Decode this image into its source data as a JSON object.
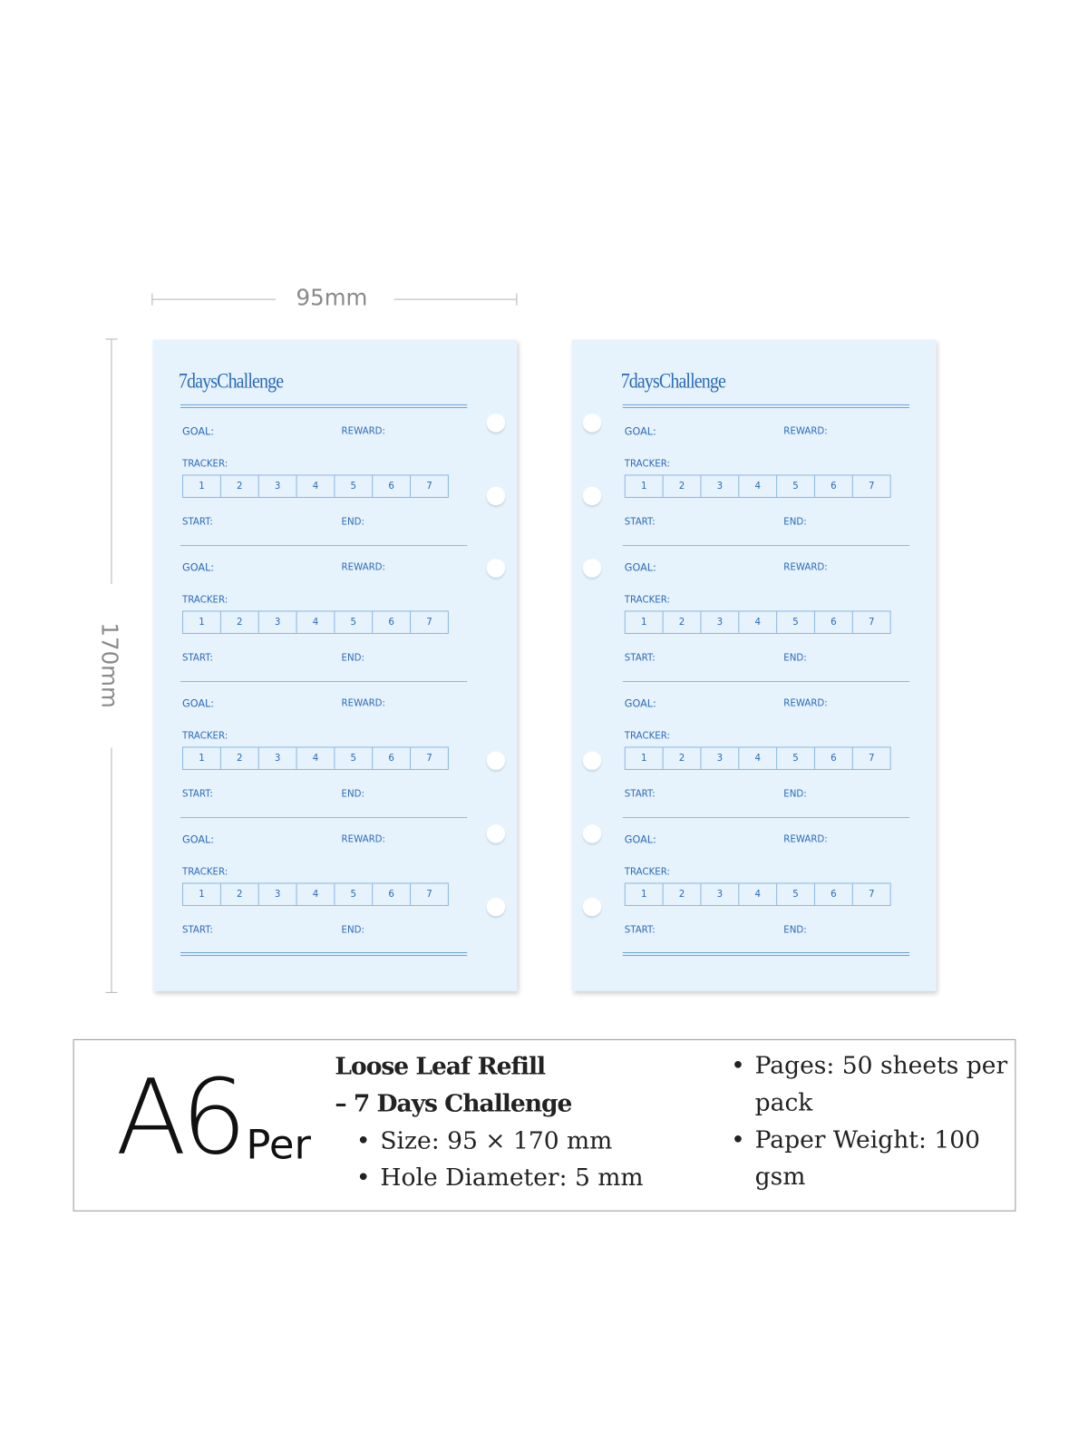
{
  "dimensions": {
    "width_label": "95mm",
    "height_label": "170mm"
  },
  "refill_page": {
    "title": "7daysChallenge",
    "goal_label": "GOAL:",
    "reward_label": "REWARD:",
    "tracker_label": "TRACKER:",
    "tracker_days": [
      "1",
      "2",
      "3",
      "4",
      "5",
      "6",
      "7"
    ],
    "start_label": "START:",
    "end_label": "END:",
    "section_count": 4,
    "background_color": "#e7f3fc",
    "ink_color": "#2a6ab8"
  },
  "info": {
    "size_mark": "A6",
    "size_suffix": "Per",
    "product_title_line1": "Loose Leaf Refill",
    "product_title_line2": "– 7 Days Challenge",
    "specs_left": [
      "Size: 95 × 170 mm",
      "Hole Diameter: 5 mm"
    ],
    "specs_right": [
      "Pages: 50 sheets per",
      "pack",
      "Paper Weight: 100",
      "gsm"
    ]
  }
}
